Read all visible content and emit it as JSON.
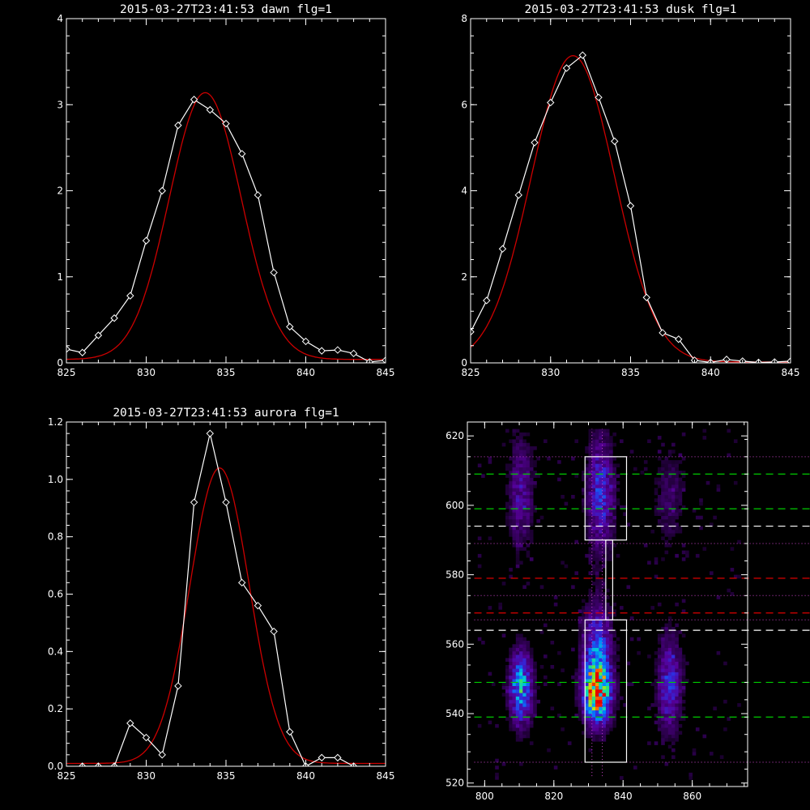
{
  "colors": {
    "background": "#000000",
    "axes": "#ffffff",
    "data": "#ffffff",
    "fit": "#cc0000",
    "green_line": "#00cc00",
    "red_line": "#dd0000",
    "white_line": "#ffffff",
    "pink_dotted": "#cc44cc"
  },
  "chart_data": [
    {
      "id": "dawn",
      "type": "line",
      "title": "2015-03-27T23:41:53 dawn flg=1",
      "xlim": [
        825,
        845
      ],
      "ylim": [
        0,
        4
      ],
      "xticks": [
        825,
        830,
        835,
        840,
        845
      ],
      "yticks": [
        0,
        1,
        2,
        3,
        4
      ],
      "series": [
        {
          "role": "data",
          "marker": "diamond",
          "x": [
            825,
            826,
            827,
            828,
            829,
            830,
            831,
            832,
            833,
            834,
            835,
            836,
            837,
            838,
            839,
            840,
            841,
            842,
            843,
            844,
            845
          ],
          "y": [
            0.16,
            0.12,
            0.32,
            0.52,
            0.78,
            1.42,
            2.0,
            2.76,
            3.06,
            2.94,
            2.78,
            2.43,
            1.95,
            1.05,
            0.42,
            0.25,
            0.14,
            0.15,
            0.11,
            0.01,
            0.03
          ]
        },
        {
          "role": "fit",
          "model": "gaussian",
          "amplitude": 3.1,
          "center": 833.7,
          "sigma": 2.25,
          "offset": 0.04
        }
      ]
    },
    {
      "id": "dusk",
      "type": "line",
      "title": "2015-03-27T23:41:53 dusk flg=1",
      "xlim": [
        825,
        845
      ],
      "ylim": [
        0,
        8
      ],
      "xticks": [
        825,
        830,
        835,
        840,
        845
      ],
      "yticks": [
        0,
        2,
        4,
        6,
        8
      ],
      "series": [
        {
          "role": "data",
          "marker": "diamond",
          "x": [
            825,
            826,
            827,
            828,
            829,
            830,
            831,
            832,
            833,
            834,
            835,
            836,
            837,
            838,
            839,
            840,
            841,
            842,
            843,
            844,
            845
          ],
          "y": [
            0.72,
            1.45,
            2.65,
            3.9,
            5.12,
            6.05,
            6.85,
            7.15,
            6.17,
            5.15,
            3.65,
            1.52,
            0.7,
            0.55,
            0.06,
            0.01,
            0.08,
            0.04,
            0.01,
            0.02,
            0.04
          ]
        },
        {
          "role": "fit",
          "model": "gaussian",
          "amplitude": 7.12,
          "center": 831.4,
          "sigma": 2.6,
          "offset": 0.02
        }
      ]
    },
    {
      "id": "aurora",
      "type": "line",
      "title": "2015-03-27T23:41:53 aurora flg=1",
      "xlim": [
        825,
        845
      ],
      "ylim": [
        0,
        1.2
      ],
      "xticks": [
        825,
        830,
        835,
        840,
        845
      ],
      "yticks": [
        0.0,
        0.2,
        0.4,
        0.6,
        0.8,
        1.0,
        1.2
      ],
      "ytick_labels": [
        "0.0",
        "0.2",
        "0.4",
        "0.6",
        "0.8",
        "1.0",
        "1.2"
      ],
      "series": [
        {
          "role": "data",
          "marker": "diamond",
          "x": [
            826,
            827,
            828,
            829,
            830,
            831,
            832,
            833,
            834,
            835,
            836,
            837,
            838,
            839,
            840,
            841,
            842,
            843
          ],
          "y": [
            0.0,
            0.0,
            0.0,
            0.15,
            0.1,
            0.04,
            0.28,
            0.92,
            1.16,
            0.92,
            0.64,
            0.56,
            0.47,
            0.12,
            0.0,
            0.03,
            0.03,
            0.0
          ]
        },
        {
          "role": "fit",
          "model": "gaussian",
          "amplitude": 1.03,
          "center": 834.6,
          "sigma": 1.85,
          "offset": 0.01
        }
      ]
    },
    {
      "id": "spectrogram",
      "type": "heatmap",
      "xlim": [
        795,
        876
      ],
      "ylim": [
        519,
        624
      ],
      "xticks": [
        800,
        820,
        840,
        860
      ],
      "yticks": [
        520,
        540,
        560,
        580,
        600,
        620
      ],
      "sources": [
        {
          "x": 810,
          "y": 547,
          "amp": 0.55,
          "sx": 2.2,
          "sy": 7
        },
        {
          "x": 810,
          "y": 603,
          "amp": 0.22,
          "sx": 2.4,
          "sy": 11
        },
        {
          "x": 832,
          "y": 546,
          "amp": 1.0,
          "sx": 2.6,
          "sy": 6
        },
        {
          "x": 832,
          "y": 560,
          "amp": 0.35,
          "sx": 2.8,
          "sy": 8
        },
        {
          "x": 833,
          "y": 603,
          "amp": 0.35,
          "sx": 2.6,
          "sy": 11
        },
        {
          "x": 853,
          "y": 548,
          "amp": 0.35,
          "sx": 2.3,
          "sy": 9
        },
        {
          "x": 853,
          "y": 602,
          "amp": 0.12,
          "sx": 3.0,
          "sy": 10
        }
      ],
      "green_dashed_y": [
        609,
        599,
        549,
        539
      ],
      "white_dashed_y": [
        594,
        564
      ],
      "red_dashed_y": [
        579,
        569
      ],
      "pink_dotted_y": [
        614,
        589,
        574,
        567,
        526
      ],
      "pink_dotted_x": [
        831,
        834
      ],
      "white_boxes": [
        {
          "x": [
            829,
            841
          ],
          "y": [
            590,
            614
          ]
        },
        {
          "x": [
            829,
            841
          ],
          "y": [
            526,
            567
          ]
        },
        {
          "x": [
            835,
            837
          ],
          "y": [
            567,
            590
          ]
        }
      ]
    }
  ]
}
